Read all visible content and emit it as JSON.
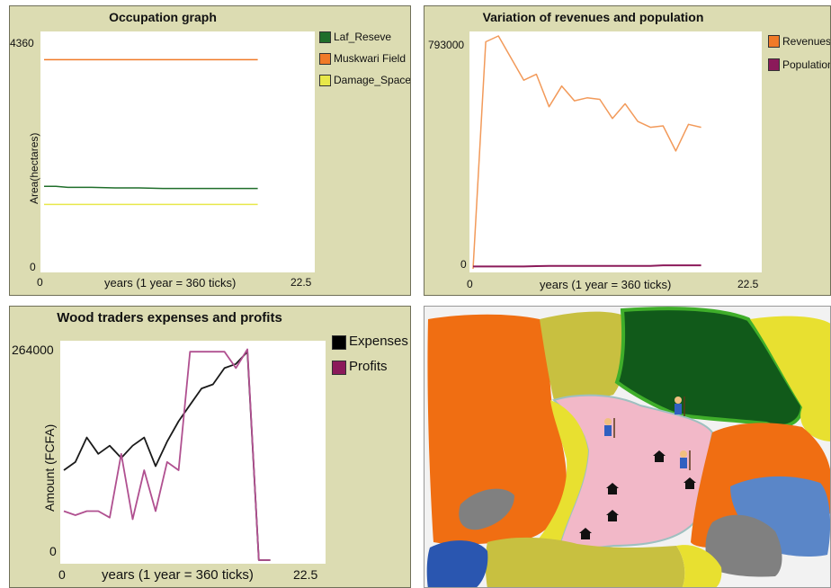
{
  "chart_data": [
    {
      "type": "line",
      "title": "Occupation graph",
      "xlabel": "years (1 year = 360 ticks)",
      "ylabel": "Area(hectares)",
      "x_ticks": [
        "0",
        "22.5"
      ],
      "y_ticks": [
        "0",
        "4360"
      ],
      "xlim": [
        0,
        22.5
      ],
      "ylim": [
        0,
        4360
      ],
      "legend_position": "right",
      "x": [
        0,
        1,
        2,
        4,
        6,
        8,
        10,
        12,
        14,
        16,
        18
      ],
      "series": [
        {
          "name": "Laf_Reseve",
          "color": "#1f6e2a",
          "values": [
            1540,
            1540,
            1520,
            1520,
            1510,
            1510,
            1500,
            1500,
            1500,
            1500,
            1500
          ]
        },
        {
          "name": "Muskwari Field",
          "color": "#f07a28",
          "values": [
            3900,
            3900,
            3900,
            3900,
            3900,
            3900,
            3900,
            3900,
            3900,
            3900,
            3900
          ]
        },
        {
          "name": "Damage_Space",
          "color": "#e8e84a",
          "values": [
            1200,
            1200,
            1200,
            1200,
            1200,
            1200,
            1200,
            1200,
            1200,
            1200,
            1200
          ]
        }
      ]
    },
    {
      "type": "line",
      "title": "Variation of revenues and population",
      "xlabel": "years (1 year = 360 ticks)",
      "ylabel": "",
      "x_ticks": [
        "0",
        "22.5"
      ],
      "y_ticks": [
        "0",
        "793000"
      ],
      "xlim": [
        0,
        22.5
      ],
      "ylim": [
        0,
        793000
      ],
      "legend_position": "right",
      "x": [
        0,
        1,
        2,
        4,
        5,
        6,
        7,
        8,
        9,
        10,
        11,
        12,
        13,
        14,
        15,
        16,
        17,
        18
      ],
      "series": [
        {
          "name": "Revenues",
          "color": "#f29a5a",
          "values": [
            0,
            770000,
            790000,
            640000,
            660000,
            550000,
            620000,
            570000,
            580000,
            575000,
            510000,
            560000,
            500000,
            480000,
            485000,
            400000,
            490000,
            480000
          ]
        },
        {
          "name": "Population",
          "color": "#8b1a5a",
          "values": [
            8000,
            8000,
            8000,
            8000,
            9000,
            10000,
            10000,
            10000,
            10000,
            10000,
            10000,
            10000,
            10000,
            10000,
            12000,
            12000,
            12000,
            12000
          ]
        }
      ]
    },
    {
      "type": "line",
      "title": "Wood traders expenses and profits",
      "xlabel": "years (1 year = 360 ticks)",
      "ylabel": "Amount (FCFA)",
      "x_ticks": [
        "0",
        "22.5"
      ],
      "y_ticks": [
        "0",
        "264000"
      ],
      "xlim": [
        0,
        22.5
      ],
      "ylim": [
        0,
        264000
      ],
      "legend_position": "right",
      "x": [
        0,
        1,
        2,
        3,
        4,
        5,
        6,
        7,
        8,
        9,
        10,
        11,
        12,
        13,
        14,
        15,
        16,
        17,
        18
      ],
      "series": [
        {
          "name": "Expenses",
          "color": "#1a1a1a",
          "values": [
            110000,
            120000,
            150000,
            130000,
            140000,
            125000,
            140000,
            150000,
            115000,
            145000,
            170000,
            190000,
            210000,
            215000,
            235000,
            240000,
            255000,
            0,
            0
          ]
        },
        {
          "name": "Profits",
          "color": "#b05090",
          "values": [
            60000,
            55000,
            60000,
            60000,
            52000,
            130000,
            50000,
            110000,
            60000,
            120000,
            110000,
            255000,
            255000,
            255000,
            255000,
            235000,
            258000,
            0,
            0
          ]
        }
      ]
    }
  ],
  "map": {
    "label": "landscape view"
  }
}
